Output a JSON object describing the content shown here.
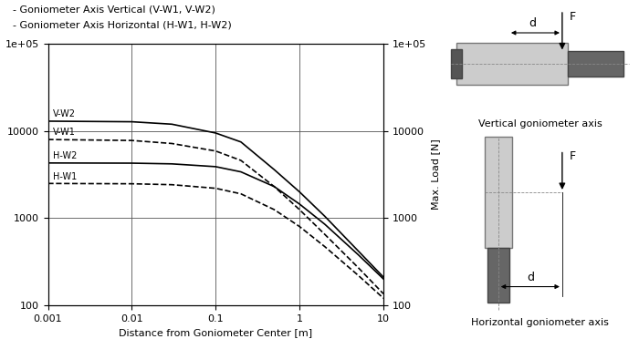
{
  "chart_data": {
    "type": "line",
    "legend_texts": [
      "- Goniometer Axis Vertical (V-W1, V-W2)",
      "- Goniometer Axis Horizontal (H-W1, H-W2)"
    ],
    "x_label": "Distance from Goniometer Center [m]",
    "y2_label": "Max. Load [N]",
    "log": true,
    "grid": true,
    "x": [
      0.001,
      0.01,
      0.03,
      0.1,
      0.2,
      0.5,
      1,
      2,
      5,
      10
    ],
    "series": [
      {
        "name": "V-W2",
        "color": "#000000",
        "line_style": "solid",
        "values": [
          13000,
          12800,
          12000,
          9500,
          7500,
          3600,
          2000,
          1050,
          420,
          210
        ]
      },
      {
        "name": "V-W1",
        "color": "#000000",
        "line_style": "dashed",
        "values": [
          8000,
          7800,
          7200,
          5900,
          4600,
          2300,
          1250,
          650,
          270,
          135
        ]
      },
      {
        "name": "H-W2",
        "color": "#000000",
        "line_style": "solid",
        "values": [
          4300,
          4280,
          4200,
          3900,
          3400,
          2300,
          1450,
          850,
          380,
          200
        ]
      },
      {
        "name": "H-W1",
        "color": "#000000",
        "line_style": "dashed",
        "values": [
          2500,
          2480,
          2420,
          2200,
          1900,
          1250,
          800,
          470,
          220,
          120
        ]
      }
    ],
    "xlim": [
      0.001,
      10
    ],
    "xticks": [
      0.001,
      0.01,
      0.1,
      1,
      10
    ],
    "ylim": [
      100,
      100000
    ],
    "yticks": [
      100,
      1000,
      10000,
      {
        "value": 100000,
        "label": "1e+05"
      }
    ],
    "y2lim": [
      100,
      100000
    ],
    "y2ticks": [
      100,
      1000,
      10000,
      {
        "value": 100000,
        "label": "1e+05"
      }
    ]
  },
  "diagrams": [
    {
      "caption": "Vertical goniometer axis",
      "distance_label": "d",
      "force_label": "F"
    },
    {
      "caption": "Horizontal goniometer axis",
      "distance_label": "d",
      "force_label": "F"
    }
  ]
}
